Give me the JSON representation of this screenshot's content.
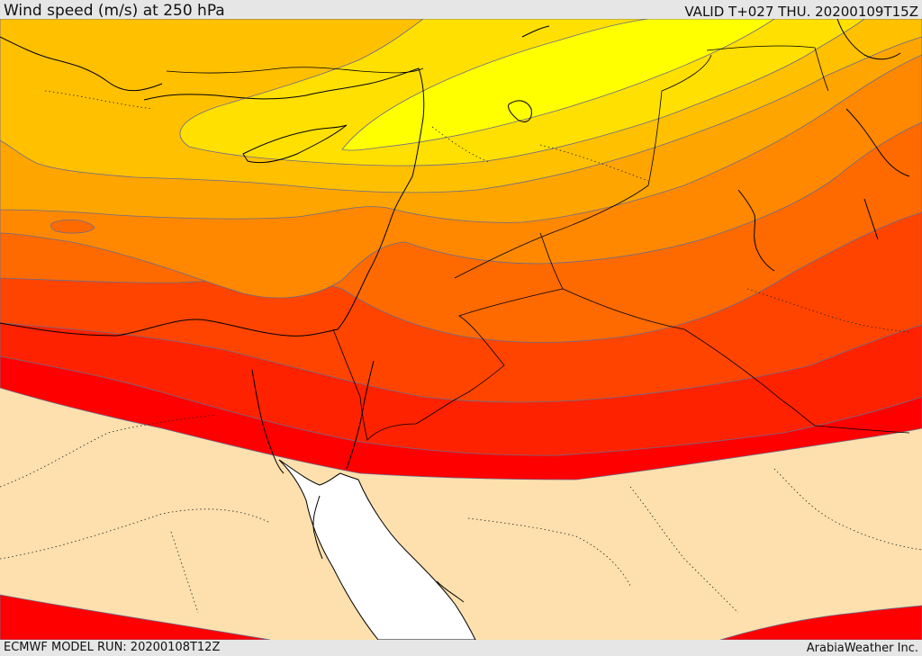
{
  "header": {
    "title": "Wind speed (m/s) at 250 hPa",
    "valid": "VALID T+027 THU. 20200109T15Z"
  },
  "footer": {
    "model_run": "ECMWF MODEL RUN: 20200108T12Z",
    "credit": "ArabiaWeather Inc."
  },
  "colors": {
    "band_light_yellow": "#ffff00",
    "band_yellow": "#ffe000",
    "band_gold": "#ffc000",
    "band_orange_light": "#ffa500",
    "band_orange": "#ff8800",
    "band_dark_orange": "#ff6a00",
    "band_red_orange": "#ff4400",
    "band_red_dark": "#ff2200",
    "band_red": "#ff0000",
    "calm_area": "#fde0ad",
    "sea": "#ffffff",
    "coastline": "#000000",
    "contour_line": "#6b6b8a"
  }
}
